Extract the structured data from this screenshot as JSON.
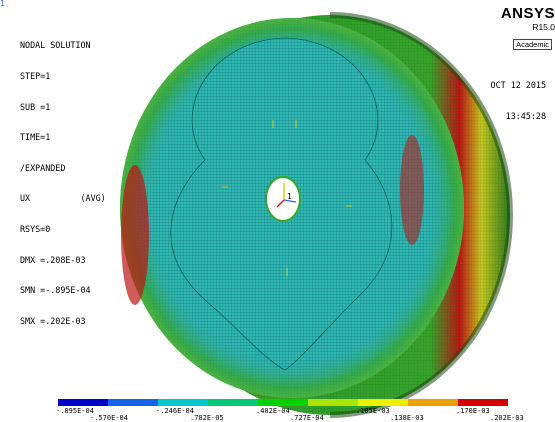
{
  "window": {
    "marker": "1"
  },
  "solution": {
    "title": "NODAL SOLUTION",
    "step": "STEP=1",
    "sub": "SUB =1",
    "time": "TIME=1",
    "display": "/EXPANDED",
    "component": "UX          (AVG)",
    "rsys": "RSYS=0",
    "dmx": "DMX =.208E-03",
    "smn": "SMN =-.895E-04",
    "smx": "SMX =.202E-03"
  },
  "brand": {
    "name": "ANSYS",
    "version": "R15.0",
    "edition": "Academic"
  },
  "timestamp": {
    "date": "OCT 12 2015",
    "time": "13:45:28"
  },
  "triad": {
    "label": "1"
  },
  "legend": {
    "colors": [
      "#0000c8",
      "#1464e6",
      "#00c8c8",
      "#00c87a",
      "#00d200",
      "#a8e600",
      "#f0f000",
      "#f0a000",
      "#d20000"
    ],
    "labels_upper": [
      "-.895E-04",
      "-.246E-04",
      ".402E-04",
      ".105E-03",
      ".170E-03"
    ],
    "labels_lower": [
      "-.570E-04",
      ".782E-05",
      ".727E-04",
      ".138E-03",
      ".202E-03"
    ]
  },
  "colors": {
    "mesh_cyan": "#2fb8b4",
    "mesh_line": "#0e5f5c",
    "rim_green": "#37a52a",
    "rim_yellow": "#c8c81e",
    "rim_orange": "#d27814",
    "rim_red": "#be1414",
    "hub_white": "#ffffff"
  }
}
